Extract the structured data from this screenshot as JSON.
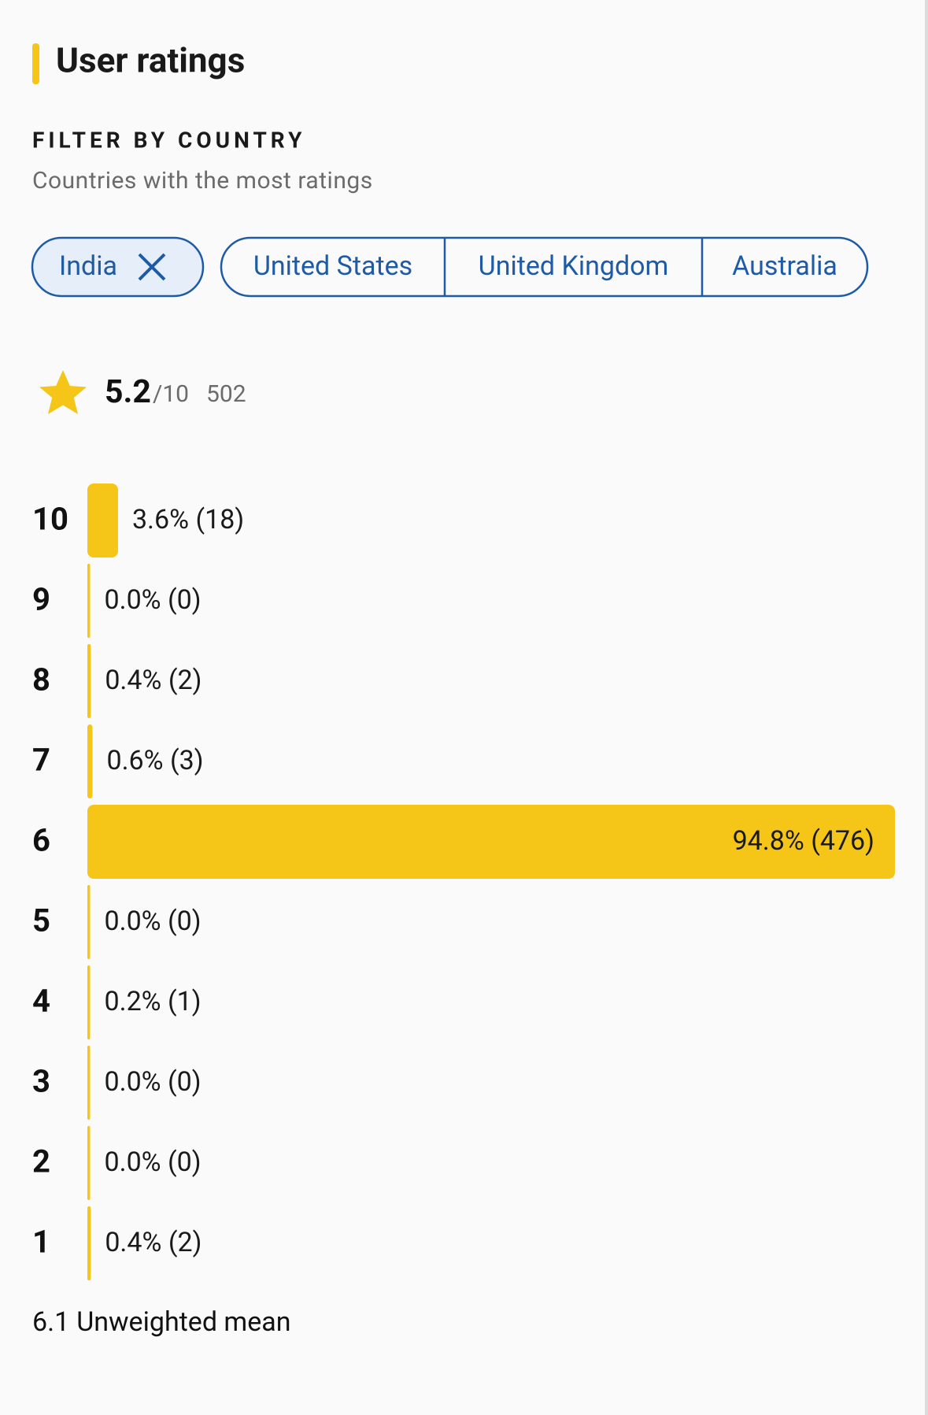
{
  "header": {
    "title": "User ratings"
  },
  "filter": {
    "heading": "FILTER BY COUNTRY",
    "subtitle": "Countries with the most ratings",
    "chips": [
      {
        "label": "India",
        "selected": true
      },
      {
        "label": "United States",
        "selected": false
      },
      {
        "label": "United Kingdom",
        "selected": false
      },
      {
        "label": "Australia",
        "selected": false
      }
    ]
  },
  "summary": {
    "score": 5.2,
    "scale": "/10",
    "count": 502
  },
  "distribution": {
    "color": "#f5c518",
    "rows": [
      {
        "rating": 10,
        "percent": 3.6,
        "count": 18,
        "value_label": "3.6% (18)"
      },
      {
        "rating": 9,
        "percent": 0.0,
        "count": 0,
        "value_label": "0.0% (0)"
      },
      {
        "rating": 8,
        "percent": 0.4,
        "count": 2,
        "value_label": "0.4% (2)"
      },
      {
        "rating": 7,
        "percent": 0.6,
        "count": 3,
        "value_label": "0.6% (3)"
      },
      {
        "rating": 6,
        "percent": 94.8,
        "count": 476,
        "value_label": "94.8% (476)"
      },
      {
        "rating": 5,
        "percent": 0.0,
        "count": 0,
        "value_label": "0.0% (0)"
      },
      {
        "rating": 4,
        "percent": 0.2,
        "count": 1,
        "value_label": "0.2% (1)"
      },
      {
        "rating": 3,
        "percent": 0.0,
        "count": 0,
        "value_label": "0.0% (0)"
      },
      {
        "rating": 2,
        "percent": 0.0,
        "count": 0,
        "value_label": "0.0% (0)"
      },
      {
        "rating": 1,
        "percent": 0.4,
        "count": 2,
        "value_label": "0.4% (2)"
      }
    ]
  },
  "footer": {
    "mean": 6.1,
    "label": "Unweighted mean"
  }
}
